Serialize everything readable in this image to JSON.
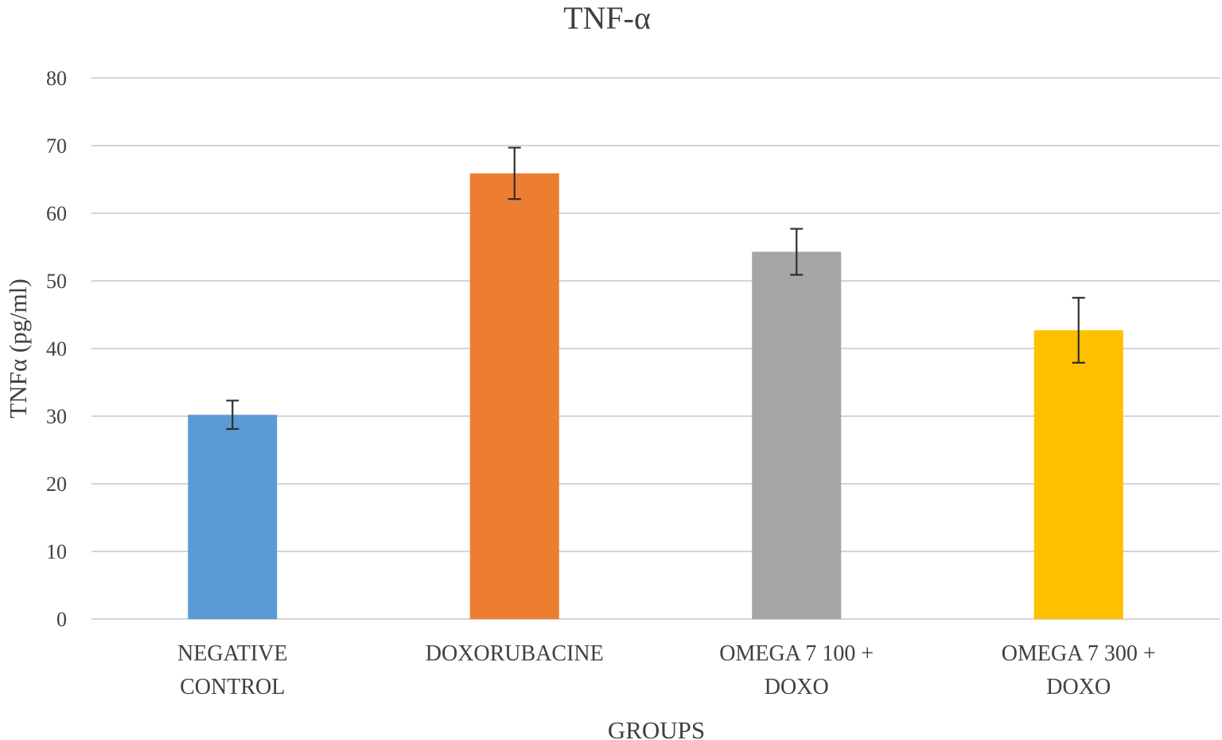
{
  "chart_data": {
    "type": "bar",
    "title": "TNF-α",
    "xlabel": "GROUPS",
    "ylabel": "TNFα (pg/ml)",
    "ylim": [
      0,
      80
    ],
    "yticks": [
      0,
      10,
      20,
      30,
      40,
      50,
      60,
      70,
      80
    ],
    "grid": true,
    "categories": [
      [
        "NEGATIVE",
        "CONTROL"
      ],
      [
        "DOXORUBACINE"
      ],
      [
        "OMEGA 7 100 +",
        "DOXO"
      ],
      [
        "OMEGA 7 300 +",
        "DOXO"
      ]
    ],
    "values": [
      30.2,
      65.9,
      54.3,
      42.7
    ],
    "errors": [
      2.1,
      3.8,
      3.4,
      4.8
    ],
    "colors": [
      "#5b9bd5",
      "#ed7d31",
      "#a5a5a5",
      "#ffc000"
    ]
  }
}
